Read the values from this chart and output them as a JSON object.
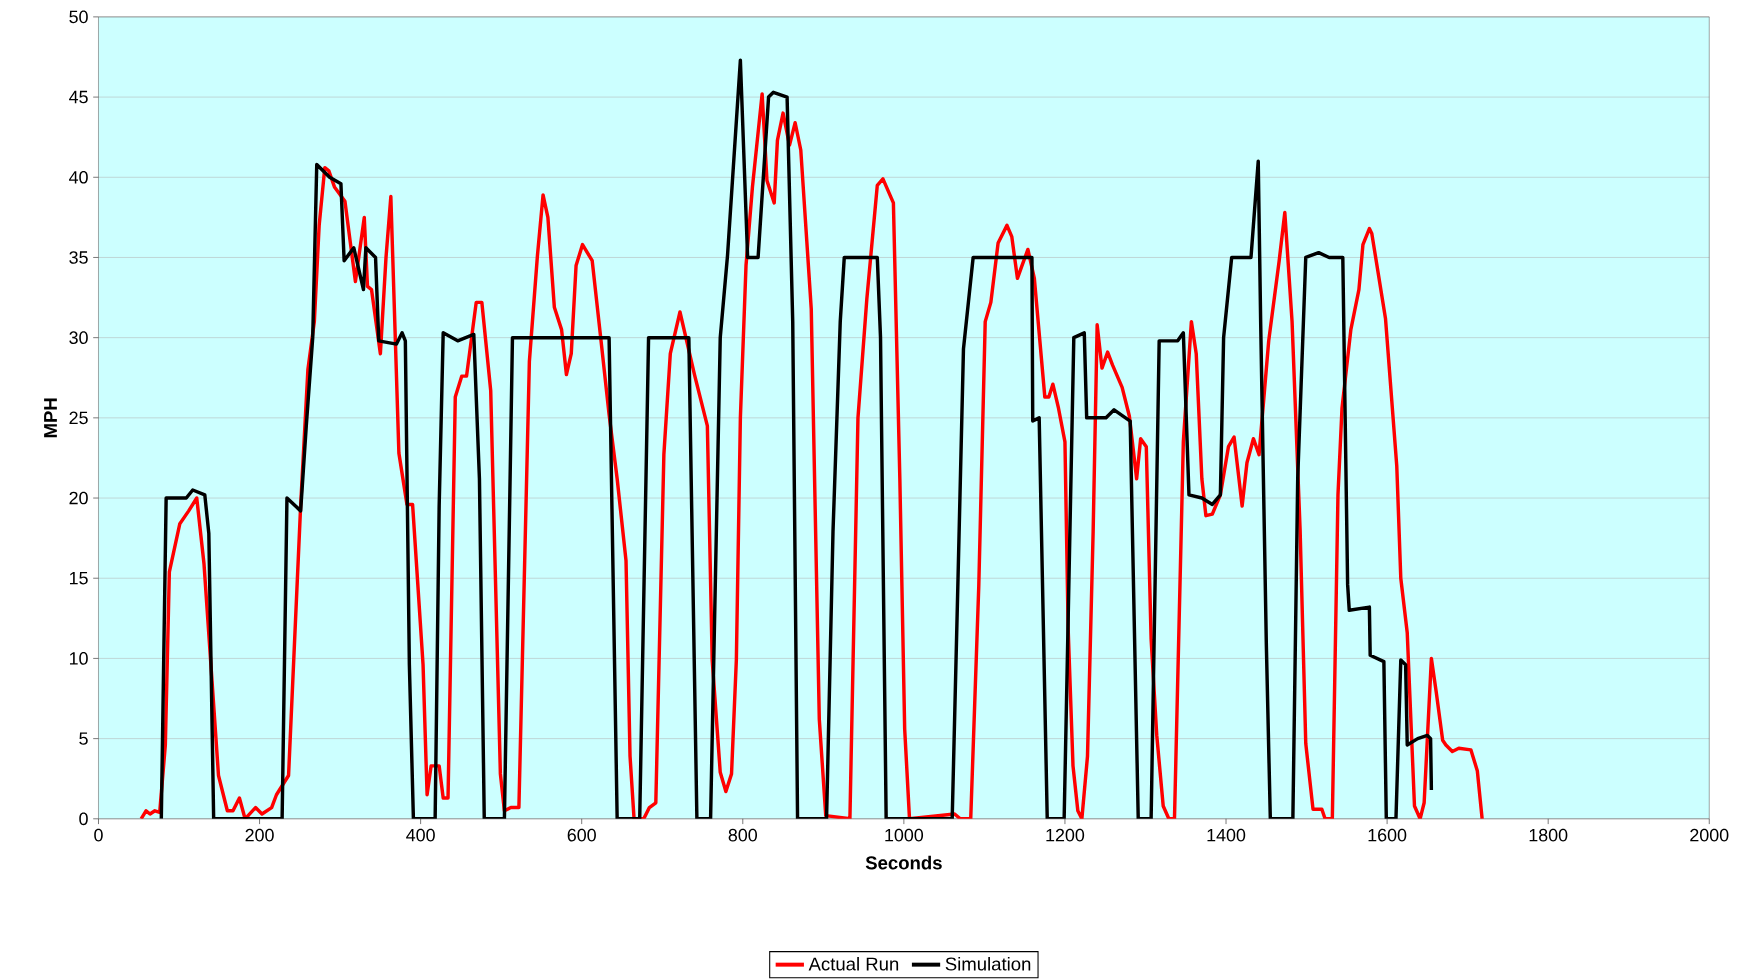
{
  "chart_data": {
    "type": "line",
    "xlabel": "Seconds",
    "ylabel": "MPH",
    "xlim": [
      0,
      2000
    ],
    "ylim": [
      0,
      50
    ],
    "xticks": [
      0,
      200,
      400,
      600,
      800,
      1000,
      1200,
      1400,
      1600,
      1800,
      2000
    ],
    "yticks": [
      0,
      5,
      10,
      15,
      20,
      25,
      30,
      35,
      40,
      45,
      50
    ],
    "grid": "y",
    "legend": "bottom",
    "marker": "none",
    "line_style": "solid",
    "series": [
      {
        "name": "Actual Run",
        "color": "#ff0000",
        "x": [
          53,
          59,
          64,
          70,
          76,
          83,
          88,
          101,
          112,
          122,
          131,
          149,
          160,
          167,
          175,
          182,
          195,
          203,
          215,
          221,
          236,
          251,
          260,
          268,
          274,
          281,
          286,
          293,
          306,
          319,
          330,
          334,
          339,
          350,
          357,
          363,
          373,
          383,
          390,
          403,
          408,
          413,
          423,
          428,
          434,
          443,
          451,
          457,
          469,
          476,
          487,
          499,
          504,
          512,
          522,
          535,
          545,
          552,
          558,
          566,
          575,
          581,
          587,
          593,
          601,
          613,
          624,
          634,
          644,
          655,
          660,
          665,
          677,
          684,
          692,
          702,
          710,
          722,
          740,
          756,
          762,
          772,
          779,
          786,
          792,
          797,
          804,
          812,
          824,
          830,
          839,
          843,
          850,
          858,
          865,
          872,
          885,
          895,
          903,
          933,
          943,
          954,
          967,
          974,
          987,
          995,
          1001,
          1007,
          1063,
          1070,
          1083,
          1093,
          1101,
          1108,
          1117,
          1128,
          1134,
          1141,
          1146,
          1154,
          1162,
          1175,
          1180,
          1185,
          1192,
          1200,
          1204,
          1210,
          1216,
          1221,
          1228,
          1235,
          1240,
          1246,
          1253,
          1259,
          1271,
          1280,
          1289,
          1294,
          1301,
          1307,
          1314,
          1322,
          1329,
          1336,
          1347,
          1357,
          1363,
          1370,
          1375,
          1383,
          1393,
          1403,
          1410,
          1420,
          1426,
          1434,
          1441,
          1453,
          1466,
          1473,
          1482,
          1492,
          1499,
          1508,
          1519,
          1523,
          1532,
          1539,
          1544,
          1555,
          1565,
          1570,
          1578,
          1581,
          1598,
          1612,
          1617,
          1625,
          1634,
          1641,
          1646,
          1655,
          1661,
          1669,
          1673,
          1681,
          1689,
          1704,
          1712,
          1718
        ],
        "values": [
          0,
          0.5,
          0.3,
          0.5,
          0.4,
          4.6,
          15.4,
          18.4,
          19.2,
          20,
          15.9,
          2.7,
          0.5,
          0.5,
          1.3,
          0,
          0.7,
          0.3,
          0.7,
          1.5,
          2.7,
          19.5,
          28,
          31,
          37,
          40.6,
          40.4,
          39.4,
          38.5,
          33.5,
          37.5,
          33.2,
          33,
          29,
          35,
          38.8,
          22.8,
          19.6,
          19.6,
          9.6,
          1.5,
          3.3,
          3.3,
          1.3,
          1.3,
          26.3,
          27.6,
          27.6,
          32.2,
          32.2,
          26.7,
          2.8,
          0.5,
          0.7,
          0.7,
          28.5,
          35.1,
          38.9,
          37.5,
          31.9,
          30.5,
          27.7,
          29,
          34.5,
          35.8,
          34.8,
          29.8,
          25.2,
          21.2,
          16.1,
          3.9,
          0,
          0,
          0.7,
          1,
          22.7,
          29,
          31.6,
          27.7,
          24.5,
          9.9,
          2.9,
          1.7,
          2.8,
          9.9,
          25,
          34.5,
          39.4,
          45.2,
          39.8,
          38.4,
          42.3,
          44,
          42,
          43.4,
          41.7,
          31.8,
          6.2,
          0.2,
          0,
          25,
          32.4,
          39.5,
          39.9,
          38.4,
          21.2,
          5.6,
          0,
          0.3,
          0,
          0,
          14.5,
          31,
          32.2,
          35.9,
          37,
          36.3,
          33.7,
          34.4,
          35.5,
          33.7,
          26.3,
          26.3,
          27.1,
          25.6,
          23.5,
          11.8,
          3.3,
          0.5,
          0,
          3.9,
          17.9,
          30.8,
          28.1,
          29.1,
          28.3,
          26.9,
          25.1,
          21.2,
          23.7,
          23.2,
          11.2,
          5.2,
          0.8,
          0,
          0,
          23.5,
          31,
          29,
          21.2,
          18.9,
          19,
          20.2,
          23.2,
          23.8,
          19.5,
          22.2,
          23.7,
          22.7,
          29.8,
          34.8,
          37.8,
          31,
          18,
          4.7,
          0.6,
          0.6,
          0,
          0,
          20.2,
          25.6,
          30.5,
          33,
          35.8,
          36.8,
          36.5,
          31.2,
          22,
          15,
          11.6,
          0.8,
          0,
          1,
          10,
          7.9,
          4.9,
          4.6,
          4.2,
          4.4,
          4.3,
          3,
          0
        ]
      },
      {
        "name": "Simulation",
        "color": "#000000",
        "x": [
          78,
          84,
          109,
          117,
          132,
          137,
          143,
          228,
          234,
          251,
          258,
          266,
          271,
          287,
          301,
          305,
          317,
          329,
          332,
          344,
          348,
          370,
          377,
          381,
          386,
          391,
          418,
          423,
          428,
          446,
          466,
          473,
          479,
          504,
          514,
          634,
          644,
          672,
          683,
          733,
          743,
          760,
          772,
          781,
          797,
          806,
          819,
          832,
          838,
          855,
          862,
          868,
          904,
          912,
          921,
          926,
          967,
          971,
          978,
          1060,
          1067,
          1074,
          1086,
          1159,
          1160,
          1168,
          1178,
          1199,
          1211,
          1224,
          1227,
          1251,
          1261,
          1281,
          1291,
          1307,
          1317,
          1340,
          1347,
          1354,
          1370,
          1383,
          1393,
          1397,
          1407,
          1431,
          1440,
          1443,
          1450,
          1455,
          1483,
          1489,
          1499,
          1515,
          1528,
          1545,
          1551,
          1553,
          1578,
          1579,
          1596,
          1599,
          1611,
          1617,
          1623,
          1625,
          1638,
          1650,
          1654,
          1655
        ],
        "values": [
          0,
          20,
          20,
          20.5,
          20.2,
          17.8,
          0,
          0,
          20,
          19.2,
          24.5,
          30,
          40.8,
          40,
          39.6,
          34.8,
          35.6,
          33,
          35.6,
          35,
          29.8,
          29.6,
          30.3,
          29.8,
          9.6,
          0,
          0,
          19.5,
          30.3,
          29.8,
          30.2,
          21.2,
          0,
          0,
          30,
          30,
          0,
          0,
          30,
          30,
          0,
          0,
          30,
          35.1,
          47.3,
          35,
          35,
          45,
          45.3,
          45,
          31,
          0,
          0,
          17.9,
          31,
          35,
          35,
          30,
          0,
          0,
          14.5,
          29.3,
          35,
          35,
          24.8,
          25,
          0,
          0,
          30,
          30.3,
          25,
          25,
          25.5,
          24.8,
          0,
          0,
          29.8,
          29.8,
          30.3,
          20.2,
          20,
          19.6,
          20.2,
          30,
          35,
          35,
          41,
          31,
          11,
          0,
          0,
          21.2,
          35,
          35.3,
          35,
          35,
          14.6,
          13,
          13.2,
          10.2,
          9.8,
          0,
          0,
          9.9,
          9.6,
          4.6,
          5,
          5.2,
          5,
          1.8
        ]
      }
    ]
  }
}
